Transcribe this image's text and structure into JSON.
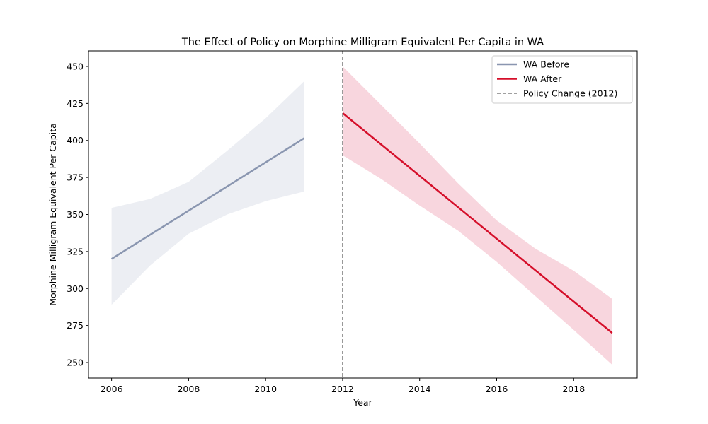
{
  "chart_data": {
    "type": "line",
    "title": "The Effect of Policy on Morphine Milligram Equivalent Per Capita in WA",
    "xlabel": "Year",
    "ylabel": "Morphine Milligram Equivalent Per Capita",
    "xlim": [
      2005.4,
      2019.65
    ],
    "ylim": [
      239.5,
      460.5
    ],
    "xticks": [
      2006,
      2008,
      2010,
      2012,
      2014,
      2016,
      2018
    ],
    "yticks": [
      250,
      275,
      300,
      325,
      350,
      375,
      400,
      425,
      450
    ],
    "grid": false,
    "legend_position": "top-right",
    "series": [
      {
        "name": "WA Before",
        "color": "#8a96b0",
        "band_color": "#eceef3",
        "x": [
          2006,
          2011
        ],
        "y": [
          320,
          401.5
        ],
        "band_x": [
          2006,
          2007,
          2008,
          2009,
          2010,
          2011
        ],
        "band_upper": [
          354.5,
          360.5,
          372,
          393,
          415,
          440
        ],
        "band_lower": [
          289,
          315.5,
          337,
          350,
          359,
          365.5
        ]
      },
      {
        "name": "WA After",
        "color": "#d50f2a",
        "band_color": "#f8d6de",
        "x": [
          2012,
          2019
        ],
        "y": [
          418.5,
          270
        ],
        "band_x": [
          2012,
          2013,
          2014,
          2015,
          2016,
          2017,
          2018,
          2019
        ],
        "band_upper": [
          450,
          424,
          398,
          371,
          346,
          327,
          312,
          293
        ],
        "band_lower": [
          390,
          374,
          356,
          339,
          318,
          295,
          272,
          248.5
        ]
      }
    ],
    "vline": {
      "name": "Policy Change (2012)",
      "x": 2012,
      "color": "#808080"
    }
  }
}
